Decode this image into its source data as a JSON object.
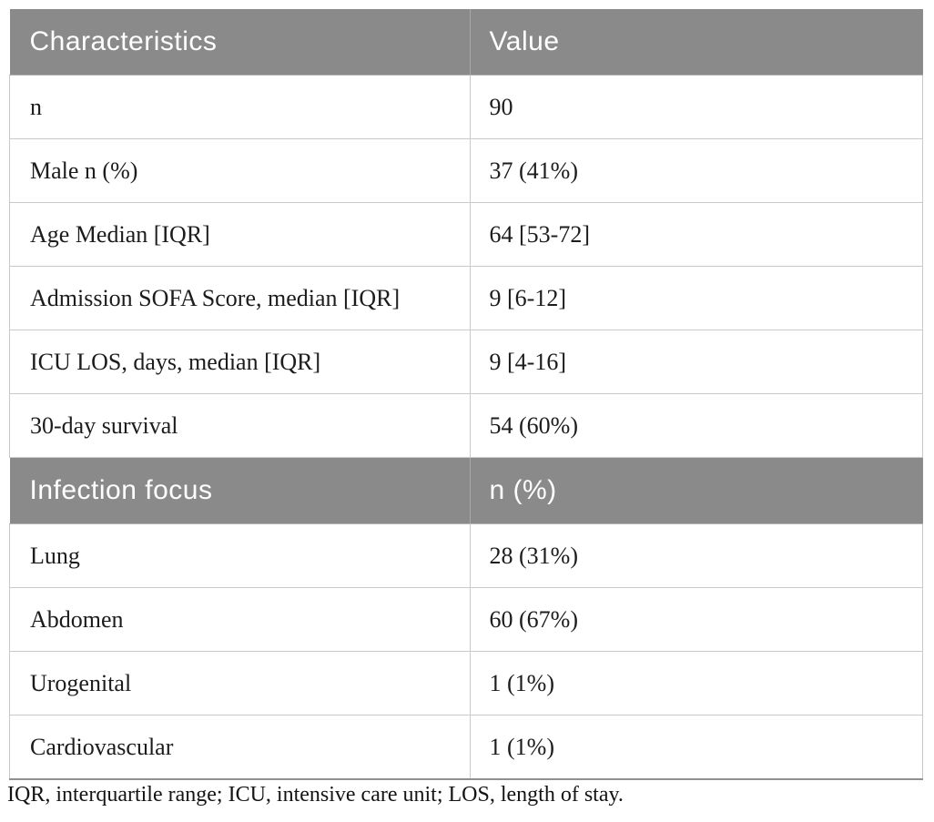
{
  "table": {
    "section1": {
      "header": {
        "col1": "Characteristics",
        "col2": "Value"
      },
      "rows": [
        {
          "label": "n",
          "value": "90"
        },
        {
          "label": "Male n (%)",
          "value": "37 (41%)"
        },
        {
          "label": "Age Median [IQR]",
          "value": "64 [53-72]"
        },
        {
          "label": "Admission SOFA Score, median [IQR]",
          "value": "9 [6-12]"
        },
        {
          "label": "ICU LOS, days, median [IQR]",
          "value": "9 [4-16]"
        },
        {
          "label": "30-day survival",
          "value": "54 (60%)"
        }
      ]
    },
    "section2": {
      "header": {
        "col1": "Infection focus",
        "col2": "n (%)"
      },
      "rows": [
        {
          "label": "Lung",
          "value": "28 (31%)"
        },
        {
          "label": "Abdomen",
          "value": "60 (67%)"
        },
        {
          "label": "Urogenital",
          "value": "1 (1%)"
        },
        {
          "label": "Cardiovascular",
          "value": "1 (1%)"
        }
      ]
    },
    "footnote": "IQR, interquartile range; ICU, intensive care unit; LOS, length of stay."
  },
  "colors": {
    "header_bg": "#8a8a8a",
    "header_text": "#ffffff",
    "row_border": "#c9c9c9",
    "table_bottom_border": "#8f8f8f",
    "body_text": "#1c1c1c"
  }
}
